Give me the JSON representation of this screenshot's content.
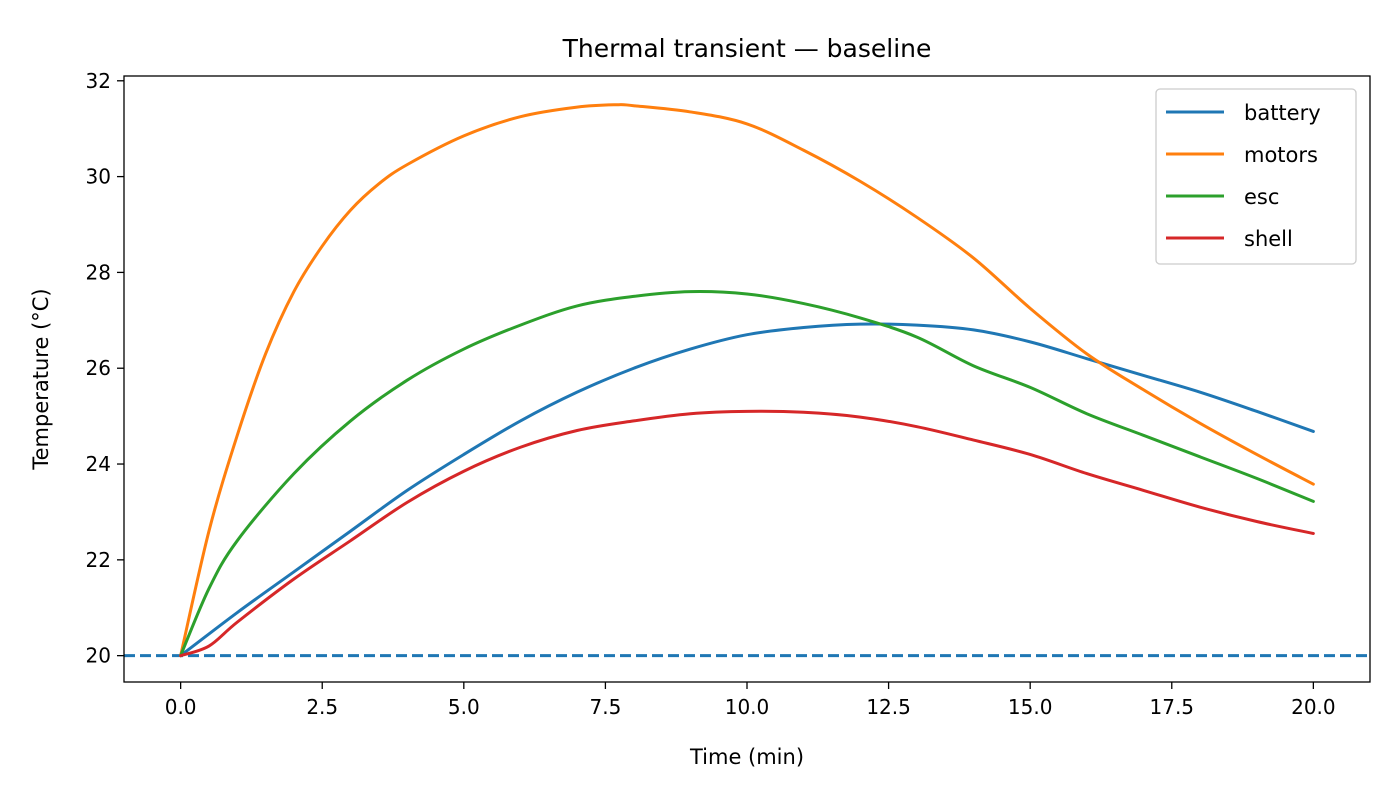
{
  "chart_data": {
    "type": "line",
    "title": "Thermal transient — baseline",
    "xlabel": "Time (min)",
    "ylabel": "Temperature (°C)",
    "xlim": [
      -1,
      21
    ],
    "ylim": [
      19.45,
      32.1
    ],
    "xticks": [
      0,
      2.5,
      5,
      7.5,
      10,
      12.5,
      15,
      17.5,
      20
    ],
    "xtick_labels": [
      "0.0",
      "2.5",
      "5.0",
      "7.5",
      "10.0",
      "12.5",
      "15.0",
      "17.5",
      "20.0"
    ],
    "yticks": [
      20,
      22,
      24,
      26,
      28,
      30,
      32
    ],
    "ytick_labels": [
      "20",
      "22",
      "24",
      "26",
      "28",
      "30",
      "32"
    ],
    "grid": false,
    "legend_position": "top-right",
    "reference_line": {
      "y": 20,
      "style": "dashed",
      "color": "#1f77b4"
    },
    "series": [
      {
        "name": "battery",
        "color": "#1f77b4",
        "x": [
          0,
          1,
          2,
          3,
          4,
          5,
          6,
          7,
          8,
          9,
          10,
          11,
          12,
          13,
          14,
          15,
          16,
          17,
          18,
          19,
          20
        ],
        "y": [
          20.0,
          20.9,
          21.75,
          22.6,
          23.45,
          24.2,
          24.9,
          25.5,
          26.0,
          26.4,
          26.7,
          26.85,
          26.92,
          26.9,
          26.8,
          26.55,
          26.2,
          25.85,
          25.5,
          25.1,
          24.68
        ]
      },
      {
        "name": "motors",
        "color": "#ff7f0e",
        "x": [
          0,
          0.5,
          1,
          1.5,
          2,
          2.5,
          3,
          3.5,
          4,
          5,
          6,
          7,
          7.7,
          8,
          9,
          10,
          11,
          12,
          13,
          14,
          15,
          16,
          17,
          18,
          19,
          20
        ],
        "y": [
          20.0,
          22.6,
          24.6,
          26.3,
          27.6,
          28.55,
          29.3,
          29.85,
          30.25,
          30.85,
          31.25,
          31.45,
          31.5,
          31.48,
          31.35,
          31.1,
          30.55,
          29.9,
          29.15,
          28.3,
          27.25,
          26.3,
          25.55,
          24.85,
          24.2,
          23.58
        ]
      },
      {
        "name": "esc",
        "color": "#2ca02c",
        "x": [
          0,
          0.5,
          1,
          2,
          3,
          4,
          5,
          6,
          7,
          8,
          9,
          10,
          11,
          12,
          13,
          14,
          15,
          16,
          17,
          18,
          19,
          20
        ],
        "y": [
          20.0,
          21.4,
          22.4,
          23.8,
          24.9,
          25.75,
          26.4,
          26.9,
          27.3,
          27.5,
          27.6,
          27.55,
          27.35,
          27.05,
          26.65,
          26.05,
          25.6,
          25.05,
          24.6,
          24.15,
          23.7,
          23.22
        ]
      },
      {
        "name": "shell",
        "color": "#d62728",
        "x": [
          0,
          0.5,
          1,
          2,
          3,
          4,
          5,
          6,
          7,
          8,
          9,
          10,
          11,
          12,
          13,
          14,
          15,
          16,
          17,
          18,
          19,
          20
        ],
        "y": [
          20.0,
          20.2,
          20.7,
          21.6,
          22.4,
          23.2,
          23.85,
          24.35,
          24.7,
          24.9,
          25.05,
          25.1,
          25.08,
          24.98,
          24.78,
          24.5,
          24.2,
          23.8,
          23.45,
          23.1,
          22.8,
          22.55
        ]
      }
    ]
  }
}
